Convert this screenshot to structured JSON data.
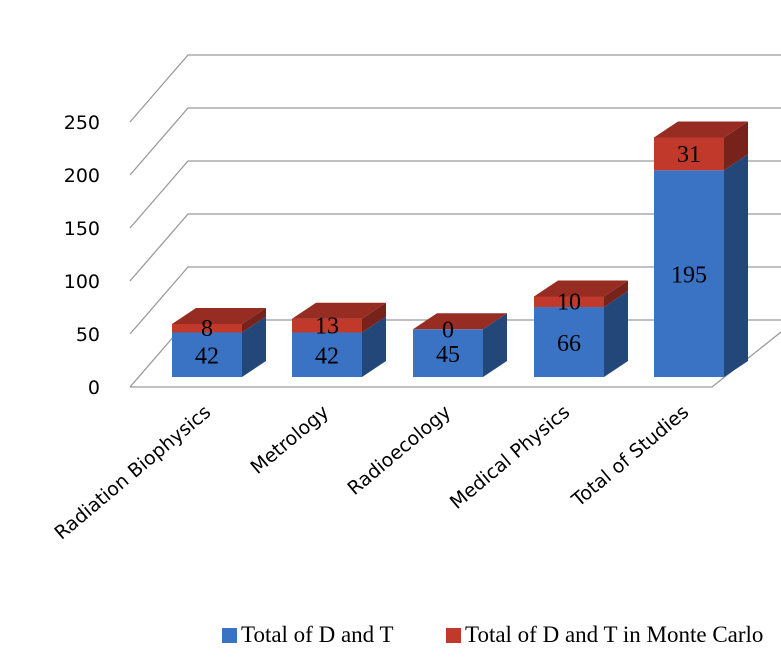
{
  "chart_data": {
    "type": "bar",
    "stacked": true,
    "style": "3d",
    "categories": [
      "Radiation Biophysics",
      "Metrology",
      "Radioecology",
      "Medical Physics",
      "Total of Studies"
    ],
    "series": [
      {
        "name": "Total of D and T",
        "values": [
          42,
          42,
          45,
          66,
          195
        ],
        "color": "#3a72c4"
      },
      {
        "name": "Total of D and T  in Monte Carlo",
        "values": [
          8,
          13,
          0,
          10,
          31
        ],
        "color": "#c0392b"
      }
    ],
    "ylim": [
      0,
      250
    ],
    "yticks": [
      "0",
      "50",
      "100",
      "150",
      "200",
      "250"
    ],
    "grid": true,
    "legend_position": "bottom"
  }
}
